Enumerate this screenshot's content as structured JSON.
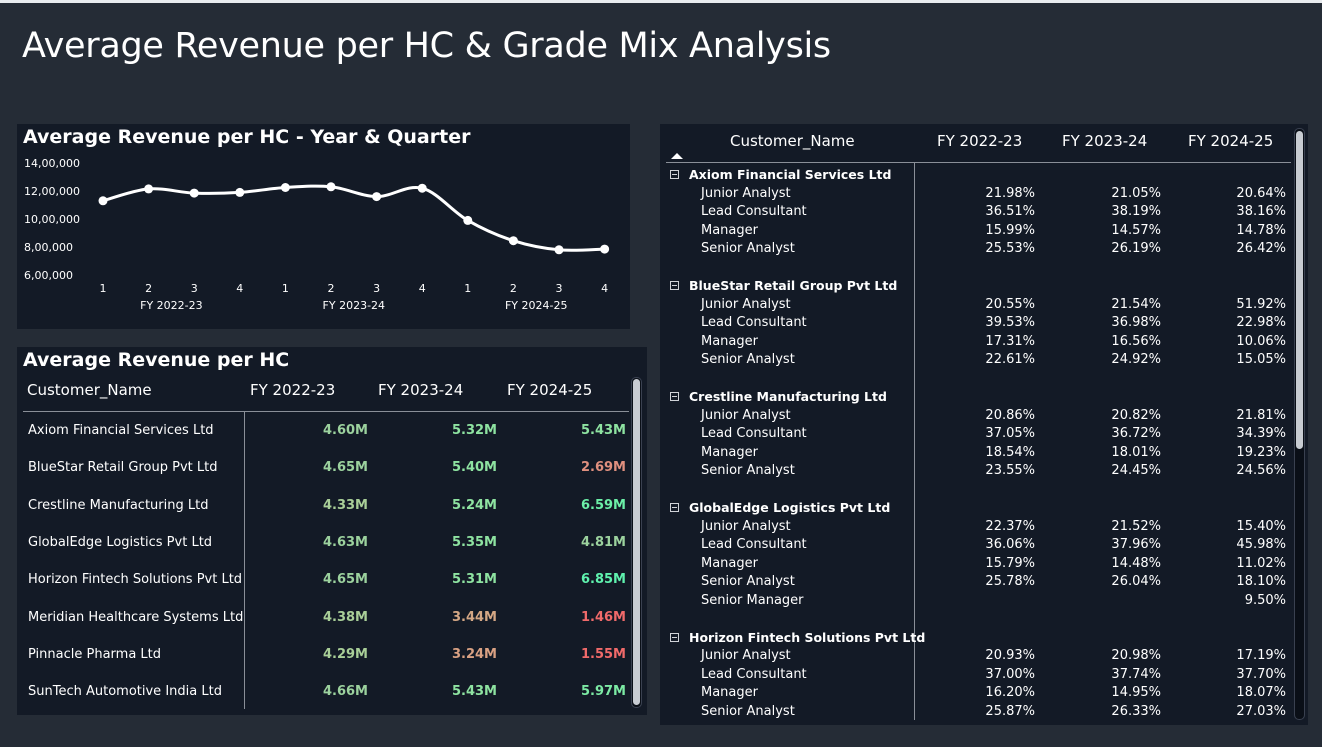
{
  "page": {
    "title": "Average Revenue per HC & Grade Mix Analysis"
  },
  "line_chart": {
    "title": "Average Revenue per HC - Year & Quarter",
    "chart_data": {
      "type": "line",
      "y_ticks": [
        "14,00,000",
        "12,00,000",
        "10,00,000",
        "8,00,000",
        "6,00,000"
      ],
      "ylim": [
        600000,
        1400000
      ],
      "x_quarters": [
        "1",
        "2",
        "3",
        "4",
        "1",
        "2",
        "3",
        "4",
        "1",
        "2",
        "3",
        "4"
      ],
      "x_years": [
        "FY 2022-23",
        "FY 2023-24",
        "FY 2024-25"
      ],
      "series": [
        {
          "values": [
            1130000,
            1215000,
            1185000,
            1190000,
            1225000,
            1230000,
            1160000,
            1220000,
            990000,
            845000,
            780000,
            785000
          ]
        }
      ],
      "colors": {
        "line": "#ffffff",
        "points": "#ffffff"
      }
    }
  },
  "rev_table": {
    "title": "Average Revenue per HC",
    "headers": [
      "Customer_Name",
      "FY 2022-23",
      "FY 2023-24",
      "FY 2024-25"
    ],
    "rows": [
      {
        "name": "Axiom Financial Services Ltd",
        "v1": "4.60M",
        "v2": "5.32M",
        "v3": "5.43M",
        "c1": "#9cd29e",
        "c2": "#8ee3a1",
        "c3": "#8ee3a1"
      },
      {
        "name": "BlueStar Retail Group Pvt Ltd",
        "v1": "4.65M",
        "v2": "5.40M",
        "v3": "2.69M",
        "c1": "#9cd29e",
        "c2": "#8ee3a1",
        "c3": "#e0907f"
      },
      {
        "name": "Crestline Manufacturing Ltd",
        "v1": "4.33M",
        "v2": "5.24M",
        "v3": "6.59M",
        "c1": "#a9cf98",
        "c2": "#8ee3a1",
        "c3": "#6cf0a8"
      },
      {
        "name": "GlobalEdge Logistics Pvt Ltd",
        "v1": "4.63M",
        "v2": "5.35M",
        "v3": "4.81M",
        "c1": "#9cd29e",
        "c2": "#8ee3a1",
        "c3": "#9cd29e"
      },
      {
        "name": "Horizon Fintech Solutions Pvt Ltd",
        "v1": "4.65M",
        "v2": "5.31M",
        "v3": "6.85M",
        "c1": "#9cd29e",
        "c2": "#8ee3a1",
        "c3": "#5ff2ae"
      },
      {
        "name": "Meridian Healthcare Systems Ltd",
        "v1": "4.38M",
        "v2": "3.44M",
        "v3": "1.46M",
        "c1": "#a9cf98",
        "c2": "#d4a785",
        "c3": "#f06a6a"
      },
      {
        "name": "Pinnacle Pharma Ltd",
        "v1": "4.29M",
        "v2": "3.24M",
        "v3": "1.55M",
        "c1": "#a9cf98",
        "c2": "#d9a183",
        "c3": "#f06a6a"
      },
      {
        "name": "SunTech Automotive India Ltd",
        "v1": "4.66M",
        "v2": "5.43M",
        "v3": "5.97M",
        "c1": "#9cd29e",
        "c2": "#8ee3a1",
        "c3": "#7ceaa4"
      }
    ]
  },
  "matrix": {
    "headers": [
      "Customer_Name",
      "FY 2022-23",
      "FY 2023-24",
      "FY 2024-25"
    ],
    "groups": [
      {
        "name": "Axiom Financial Services Ltd",
        "rows": [
          {
            "grade": "Junior Analyst",
            "v": [
              "21.98%",
              "21.05%",
              "20.64%"
            ]
          },
          {
            "grade": "Lead Consultant",
            "v": [
              "36.51%",
              "38.19%",
              "38.16%"
            ]
          },
          {
            "grade": "Manager",
            "v": [
              "15.99%",
              "14.57%",
              "14.78%"
            ]
          },
          {
            "grade": "Senior Analyst",
            "v": [
              "25.53%",
              "26.19%",
              "26.42%"
            ]
          }
        ]
      },
      {
        "name": "BlueStar Retail Group Pvt Ltd",
        "rows": [
          {
            "grade": "Junior Analyst",
            "v": [
              "20.55%",
              "21.54%",
              "51.92%"
            ]
          },
          {
            "grade": "Lead Consultant",
            "v": [
              "39.53%",
              "36.98%",
              "22.98%"
            ]
          },
          {
            "grade": "Manager",
            "v": [
              "17.31%",
              "16.56%",
              "10.06%"
            ]
          },
          {
            "grade": "Senior Analyst",
            "v": [
              "22.61%",
              "24.92%",
              "15.05%"
            ]
          }
        ]
      },
      {
        "name": "Crestline Manufacturing Ltd",
        "rows": [
          {
            "grade": "Junior Analyst",
            "v": [
              "20.86%",
              "20.82%",
              "21.81%"
            ]
          },
          {
            "grade": "Lead Consultant",
            "v": [
              "37.05%",
              "36.72%",
              "34.39%"
            ]
          },
          {
            "grade": "Manager",
            "v": [
              "18.54%",
              "18.01%",
              "19.23%"
            ]
          },
          {
            "grade": "Senior Analyst",
            "v": [
              "23.55%",
              "24.45%",
              "24.56%"
            ]
          }
        ]
      },
      {
        "name": "GlobalEdge Logistics Pvt Ltd",
        "rows": [
          {
            "grade": "Junior Analyst",
            "v": [
              "22.37%",
              "21.52%",
              "15.40%"
            ]
          },
          {
            "grade": "Lead Consultant",
            "v": [
              "36.06%",
              "37.96%",
              "45.98%"
            ]
          },
          {
            "grade": "Manager",
            "v": [
              "15.79%",
              "14.48%",
              "11.02%"
            ]
          },
          {
            "grade": "Senior Analyst",
            "v": [
              "25.78%",
              "26.04%",
              "18.10%"
            ]
          },
          {
            "grade": "Senior Manager",
            "v": [
              "",
              "",
              "9.50%"
            ]
          }
        ]
      },
      {
        "name": "Horizon Fintech Solutions Pvt Ltd",
        "rows": [
          {
            "grade": "Junior Analyst",
            "v": [
              "20.93%",
              "20.98%",
              "17.19%"
            ]
          },
          {
            "grade": "Lead Consultant",
            "v": [
              "37.00%",
              "37.74%",
              "37.70%"
            ]
          },
          {
            "grade": "Manager",
            "v": [
              "16.20%",
              "14.95%",
              "18.07%"
            ]
          },
          {
            "grade": "Senior Analyst",
            "v": [
              "25.87%",
              "26.33%",
              "27.03%"
            ]
          }
        ]
      }
    ]
  }
}
